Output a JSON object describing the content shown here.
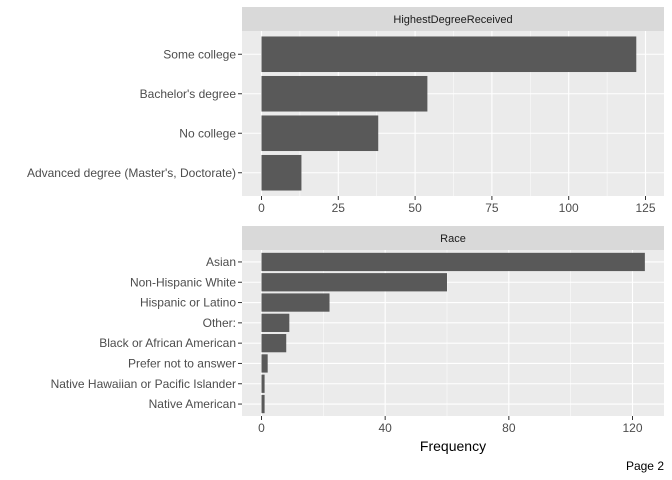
{
  "page_label": "Page 2",
  "chart_data": [
    {
      "type": "bar",
      "orientation": "horizontal",
      "title": "HighestDegreeReceived",
      "categories": [
        "Some college",
        "Bachelor's degree",
        "No college",
        "Advanced degree (Master's, Doctorate)"
      ],
      "values": [
        122,
        54,
        38,
        13
      ],
      "xlim": [
        0,
        125
      ],
      "xticks": [
        "0",
        "25",
        "50",
        "75",
        "100",
        "125"
      ],
      "xlabel": "",
      "grid": true,
      "colors": {
        "bar": "#595959",
        "panel": "#ebebeb",
        "strip": "#d9d9d9",
        "grid": "#ffffff"
      }
    },
    {
      "type": "bar",
      "orientation": "horizontal",
      "title": "Race",
      "categories": [
        "Asian",
        "Non-Hispanic White",
        "Hispanic or Latino",
        "Other:",
        "Black or African American",
        "Prefer not to answer",
        "Native Hawaiian or Pacific Islander",
        "Native American"
      ],
      "values": [
        124,
        60,
        22,
        9,
        8,
        2,
        1,
        1
      ],
      "xlim": [
        0,
        124
      ],
      "xticks": [
        "0",
        "40",
        "80",
        "120"
      ],
      "xlabel": "Frequency",
      "grid": true,
      "colors": {
        "bar": "#595959",
        "panel": "#ebebeb",
        "strip": "#d9d9d9",
        "grid": "#ffffff"
      }
    }
  ]
}
